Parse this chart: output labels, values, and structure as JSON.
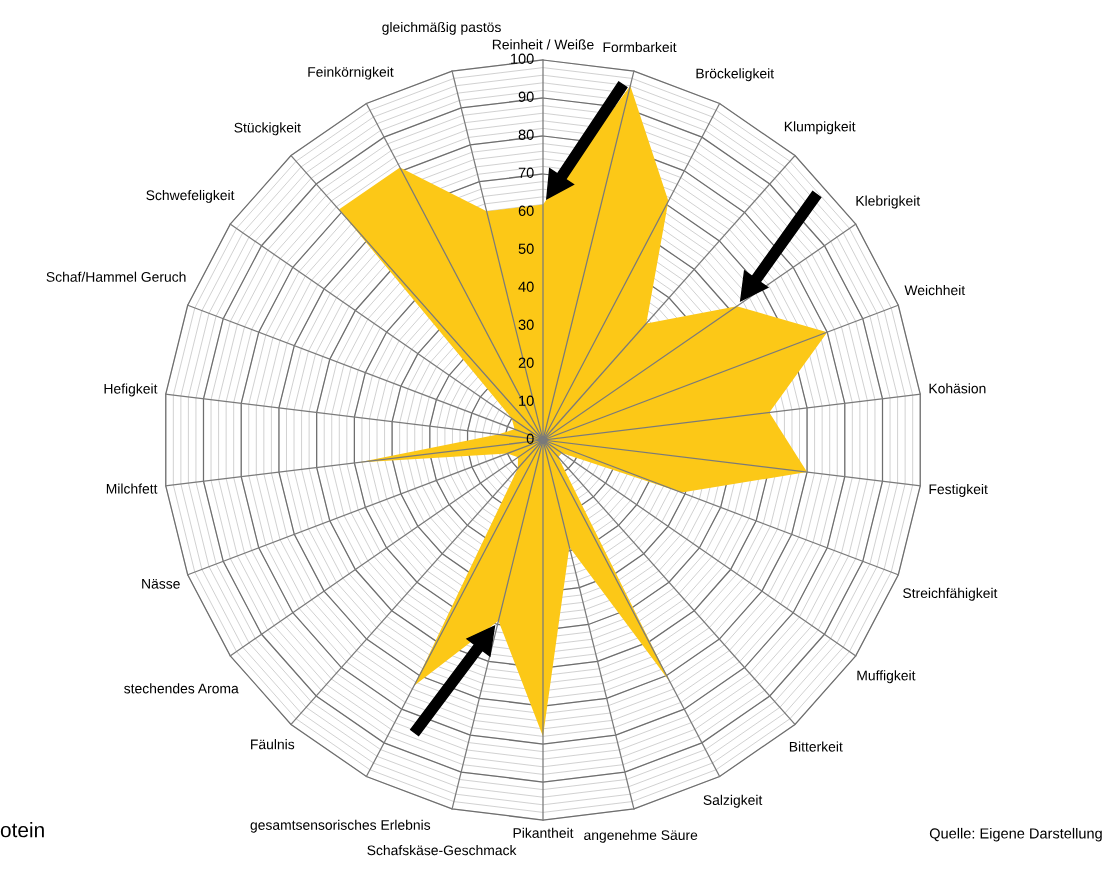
{
  "chart_data": {
    "type": "radar",
    "categories": [
      "Reinheit / Weiße",
      "Formbarkeit",
      "Bröckeligkeit",
      "Klumpigkeit",
      "Klebrigkeit",
      "Weichheit",
      "Kohäsion",
      "Festigkeit",
      "Streichfähigkeit",
      "Muffigkeit",
      "Bitterkeit",
      "Salzigkeit",
      "angenehme Säure",
      "Pikantheit",
      "Schafskäse-Geschmack",
      "gesamtsensorisches Erlebnis",
      "Fäulnis",
      "stechendes Aroma",
      "Nässe",
      "Milchfett",
      "Hefigkeit",
      "Schaf/Hammel Geruch",
      "Schwefeligkeit",
      "Stückigkeit",
      "Feinkörnigkeit",
      "gleichmäßig pastös"
    ],
    "series": [
      {
        "color": "#fcc817",
        "values": [
          62,
          96,
          71,
          41,
          62,
          80,
          60,
          70,
          39,
          6,
          6,
          72,
          29,
          78,
          49,
          73,
          10,
          8,
          10,
          49,
          12,
          8,
          10,
          81,
          81,
          62
        ]
      }
    ],
    "ylim": [
      0,
      100
    ],
    "yticks": [
      0,
      10,
      20,
      30,
      40,
      50,
      60,
      70,
      80,
      90,
      100
    ],
    "grid": true,
    "annotations": [
      "otein",
      "Quelle: Eigene Darstellung"
    ]
  }
}
